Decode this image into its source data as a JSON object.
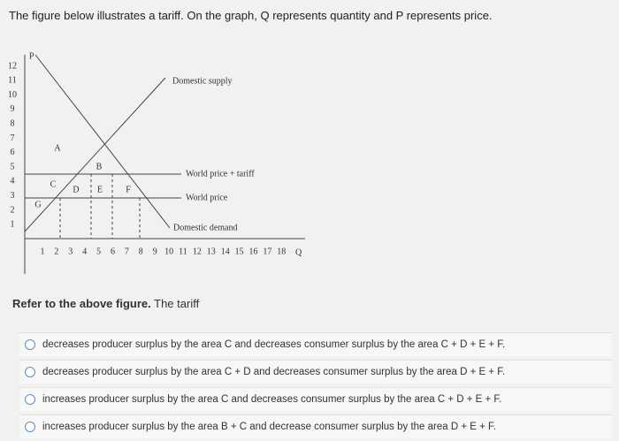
{
  "question": "The figure below illustrates a tariff. On the graph, Q represents quantity and P represents price.",
  "graph": {
    "y_axis_label": "P",
    "x_axis_label": "Q",
    "y_tick_labels": [
      "12",
      "11",
      "10",
      "9",
      "8",
      "7",
      "6",
      "5",
      "4",
      "3",
      "2",
      "1"
    ],
    "x_tick_labels": [
      "1",
      "2",
      "3",
      "4",
      "5",
      "6",
      "7",
      "8",
      "9",
      "10",
      "11",
      "12",
      "13",
      "14",
      "15",
      "16",
      "17",
      "18"
    ],
    "line_labels": {
      "supply": "Domestic supply",
      "tariff_price": "World price + tariff",
      "world_price": "World price",
      "demand": "Domestic demand"
    },
    "areas": [
      "A",
      "B",
      "C",
      "D",
      "E",
      "F",
      "G"
    ]
  },
  "prompt": {
    "lead": "Refer to the above figure.",
    "rest": "The tariff"
  },
  "options": [
    "decreases producer surplus by the area C and decreases consumer surplus by the area C + D + E + F.",
    "decreases producer surplus by the area C + D and decreases consumer surplus by the area D + E + F.",
    "increases producer surplus by the area C and decreases consumer surplus by the area C + D + E + F.",
    "increases producer surplus by the area B + C and decrease consumer surplus by the area D + E + F."
  ]
}
